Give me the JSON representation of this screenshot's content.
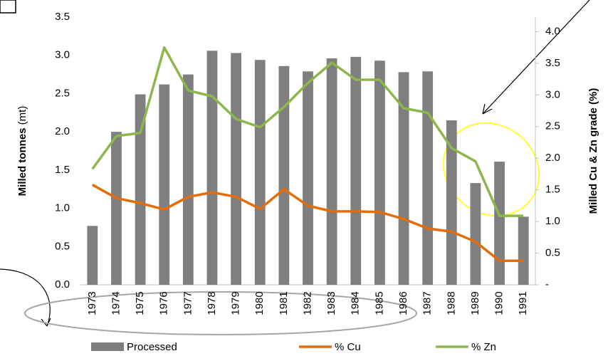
{
  "chart_data": {
    "type": "bar_line",
    "categories": [
      "1973",
      "1974",
      "1975",
      "1976",
      "1977",
      "1978",
      "1979",
      "1980",
      "1981",
      "1982",
      "1983",
      "1984",
      "1985",
      "1986",
      "1987",
      "1988",
      "1989",
      "1990",
      "1991"
    ],
    "ylabel": "Milled tonnes",
    "ylabel_unit": "(mt)",
    "y2label": "Milled Cu & Zn grade (%)",
    "ylim": [
      0,
      3.5
    ],
    "yticks": [
      {
        "value": 0,
        "label": "0.0"
      },
      0.5,
      {
        "value": 1,
        "label": "1.0"
      },
      1.5,
      {
        "value": 2,
        "label": "2.0"
      },
      2.5,
      {
        "value": 3,
        "label": "3.0"
      },
      3.5
    ],
    "y2lim": [
      0,
      4.23
    ],
    "y2ticks": [
      {
        "value": 0,
        "label": "-"
      },
      0.5,
      {
        "value": 1,
        "label": "1.0"
      },
      1.5,
      {
        "value": 2,
        "label": "2.0"
      },
      2.5,
      {
        "value": 3,
        "label": "3.0"
      },
      3.5,
      {
        "value": 4,
        "label": "4.0"
      }
    ],
    "series": [
      {
        "name": "Processed",
        "type": "bar",
        "color": "#7f7f7f",
        "values": [
          0.77,
          2.0,
          2.49,
          2.62,
          2.75,
          3.06,
          3.03,
          2.94,
          2.86,
          2.79,
          2.96,
          2.98,
          2.93,
          2.78,
          2.79,
          2.15,
          1.33,
          1.61,
          0.89
        ]
      },
      {
        "name": "% Cu",
        "type": "line",
        "axis": "y2",
        "color": "#e46c0a",
        "values": [
          1.58,
          1.37,
          1.29,
          1.19,
          1.39,
          1.46,
          1.39,
          1.2,
          1.51,
          1.25,
          1.16,
          1.16,
          1.15,
          1.04,
          0.89,
          0.84,
          0.68,
          0.38,
          0.38
        ]
      },
      {
        "name": "% Zn",
        "type": "line",
        "axis": "y2",
        "color": "#8db64c",
        "values": [
          1.83,
          2.35,
          2.4,
          3.75,
          3.07,
          2.98,
          2.62,
          2.49,
          2.81,
          3.19,
          3.51,
          3.24,
          3.24,
          2.79,
          2.72,
          2.16,
          1.95,
          1.09,
          1.09
        ]
      }
    ]
  }
}
